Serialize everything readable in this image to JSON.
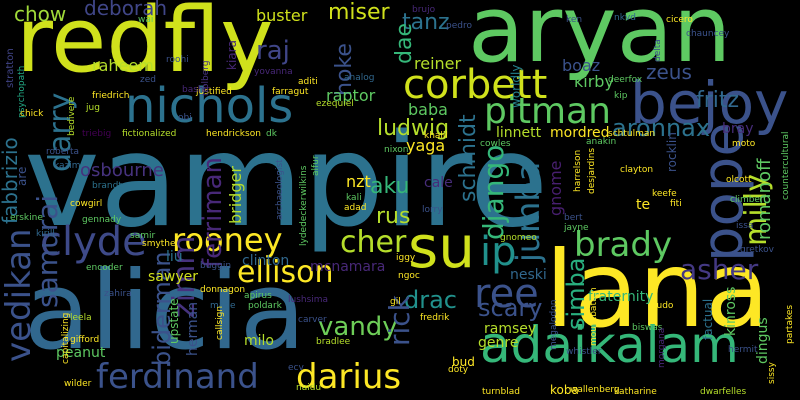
{
  "canvas": {
    "background": "#000000"
  },
  "words": [
    {
      "text": "vampire",
      "color": "#2c728e"
    },
    {
      "text": "alicia",
      "color": "#31688e"
    },
    {
      "text": "redfly",
      "color": "#d0e11c"
    },
    {
      "text": "aryan",
      "color": "#5ec962"
    },
    {
      "text": "lana",
      "color": "#fde725"
    },
    {
      "text": "adaikalam",
      "color": "#35b779"
    },
    {
      "text": "nichols",
      "color": "#2c728e"
    },
    {
      "text": "bejoy",
      "color": "#3b528b"
    },
    {
      "text": "corbett",
      "color": "#d0e11c"
    },
    {
      "text": "pitman",
      "color": "#5ec962"
    },
    {
      "text": "su",
      "color": "#d0e11c"
    },
    {
      "text": "ip",
      "color": "#21918c"
    },
    {
      "text": "pope",
      "color": "#3b528b"
    },
    {
      "text": "ellison",
      "color": "#fde725"
    },
    {
      "text": "rooney",
      "color": "#fde725"
    },
    {
      "text": "brady",
      "color": "#5ec962"
    },
    {
      "text": "ferdinand",
      "color": "#3b528b"
    },
    {
      "text": "darius",
      "color": "#fde725"
    },
    {
      "text": "clyde",
      "color": "#3e4a89"
    },
    {
      "text": "vedikan",
      "color": "#3b528b"
    },
    {
      "text": "samurai",
      "color": "#3b528b"
    },
    {
      "text": "ree",
      "color": "#3b528b"
    },
    {
      "text": "vandy",
      "color": "#6ece58"
    },
    {
      "text": "cher",
      "color": "#b5de2b"
    },
    {
      "text": "jumba",
      "color": "#2c728e"
    },
    {
      "text": "django",
      "color": "#35b779"
    },
    {
      "text": "milly",
      "color": "#b5de2b"
    },
    {
      "text": "darry",
      "color": "#2c728e"
    },
    {
      "text": "zimm",
      "color": "#46327e"
    },
    {
      "text": "asher",
      "color": "#443983"
    },
    {
      "text": "aku",
      "color": "#35b779"
    },
    {
      "text": "rus",
      "color": "#b5de2b"
    },
    {
      "text": "scary",
      "color": "#3b528b"
    },
    {
      "text": "drac",
      "color": "#21918c"
    },
    {
      "text": "ferriman",
      "color": "#482878"
    },
    {
      "text": "rick",
      "color": "#3b528b"
    },
    {
      "text": "biderman",
      "color": "#3b528b"
    },
    {
      "text": "schmidt",
      "color": "#2c728e"
    },
    {
      "text": "simba",
      "color": "#29af7f"
    },
    {
      "text": "aronnax",
      "color": "#2c728e"
    },
    {
      "text": "raj",
      "color": "#404688"
    },
    {
      "text": "miser",
      "color": "#d0e11c"
    },
    {
      "text": "tanz",
      "color": "#2c728e"
    },
    {
      "text": "chow",
      "color": "#a0da39"
    },
    {
      "text": "deborah",
      "color": "#404688"
    },
    {
      "text": "buster",
      "color": "#d0e11c"
    },
    {
      "text": "hoke",
      "color": "#3b528b"
    },
    {
      "text": "ludwig",
      "color": "#b5de2b"
    },
    {
      "text": "zeus",
      "color": "#3b528b"
    },
    {
      "text": "fritz",
      "color": "#31688e"
    },
    {
      "text": "boaz",
      "color": "#3b528b"
    },
    {
      "text": "kirby",
      "color": "#5ec962"
    },
    {
      "text": "reiner",
      "color": "#b5de2b"
    },
    {
      "text": "dae",
      "color": "#35b779"
    },
    {
      "text": "raptor",
      "color": "#5ec962"
    },
    {
      "text": "yaga",
      "color": "#fde725"
    },
    {
      "text": "baba",
      "color": "#5ec962"
    },
    {
      "text": "raheem",
      "color": "#b5de2b"
    },
    {
      "text": "osbourne",
      "color": "#46327e"
    },
    {
      "text": "fabbrizio",
      "color": "#2c728e"
    },
    {
      "text": "nzt",
      "color": "#fde725"
    },
    {
      "text": "bridger",
      "color": "#b5de2b"
    },
    {
      "text": "cale",
      "color": "#472c7a"
    },
    {
      "text": "linnett",
      "color": "#b5de2b"
    },
    {
      "text": "mordred",
      "color": "#fde725"
    },
    {
      "text": "gnome",
      "color": "#481f70"
    },
    {
      "text": "romanoff",
      "color": "#5ec962"
    },
    {
      "text": "bray",
      "color": "#472c7a"
    },
    {
      "text": "liu",
      "color": "#2c728e"
    },
    {
      "text": "sawyer",
      "color": "#d0e11c"
    },
    {
      "text": "clinton",
      "color": "#31688e"
    },
    {
      "text": "mcnamara",
      "color": "#482878"
    },
    {
      "text": "neski",
      "color": "#31688e"
    },
    {
      "text": "fraternity",
      "color": "#35b779"
    },
    {
      "text": "ramsey",
      "color": "#b5de2b"
    },
    {
      "text": "genre",
      "color": "#b5de2b"
    },
    {
      "text": "milo",
      "color": "#b5de2b"
    },
    {
      "text": "herman",
      "color": "#3b528b"
    },
    {
      "text": "peanut",
      "color": "#5ec962"
    },
    {
      "text": "dingus",
      "color": "#5ec962"
    },
    {
      "text": "kinross",
      "color": "#5ec962"
    },
    {
      "text": "factual",
      "color": "#2c728e"
    },
    {
      "text": "rocklin",
      "color": "#3b528b"
    },
    {
      "text": "te",
      "color": "#fde725"
    },
    {
      "text": "koba",
      "color": "#fde725"
    },
    {
      "text": "bud",
      "color": "#fde725"
    },
    {
      "text": "upstate",
      "color": "#5ec962"
    },
    {
      "text": "worldly",
      "color": "#26828e"
    },
    {
      "text": "are",
      "color": "#3b528b"
    },
    {
      "text": "kiara",
      "color": "#482878"
    },
    {
      "text": "stratton",
      "color": "#414487"
    },
    {
      "text": "psychopath",
      "color": "#22a884"
    },
    {
      "text": "friedrich",
      "color": "#fde725"
    },
    {
      "text": "justified",
      "color": "#fde725"
    },
    {
      "text": "farragut",
      "color": "#fde725"
    },
    {
      "text": "yovanna",
      "color": "#482878"
    },
    {
      "text": "aditi",
      "color": "#fde725"
    },
    {
      "text": "analog",
      "color": "#31688e"
    },
    {
      "text": "ezequiel",
      "color": "#b5de2b"
    },
    {
      "text": "trolberg",
      "color": "#46327e"
    },
    {
      "text": "brujo",
      "color": "#482878"
    },
    {
      "text": "pedro",
      "color": "#3b528b"
    },
    {
      "text": "wai",
      "color": "#5ec962"
    },
    {
      "text": "zed",
      "color": "#3b528b"
    },
    {
      "text": "roohi",
      "color": "#3b528b"
    },
    {
      "text": "jug",
      "color": "#b5de2b"
    },
    {
      "text": "chick",
      "color": "#fde725"
    },
    {
      "text": "bedivere",
      "color": "#b5de2b"
    },
    {
      "text": "bashir",
      "color": "#482878"
    },
    {
      "text": "obi",
      "color": "#3b528b"
    },
    {
      "text": "triebig",
      "color": "#440154"
    },
    {
      "text": "fictionalized",
      "color": "#b5de2b"
    },
    {
      "text": "hendrickson",
      "color": "#fde725"
    },
    {
      "text": "dk",
      "color": "#5ec962"
    },
    {
      "text": "roberta",
      "color": "#3b528b"
    },
    {
      "text": "kazim",
      "color": "#31688e"
    },
    {
      "text": "brandt",
      "color": "#2c728e"
    },
    {
      "text": "cowgirl",
      "color": "#fde725"
    },
    {
      "text": "gennady",
      "color": "#5ec962"
    },
    {
      "text": "erskine",
      "color": "#5ec962"
    },
    {
      "text": "kirill",
      "color": "#31688e"
    },
    {
      "text": "samir",
      "color": "#5ec962"
    },
    {
      "text": "smythe",
      "color": "#fde725"
    },
    {
      "text": "encoder",
      "color": "#5ec962"
    },
    {
      "text": "zahira",
      "color": "#3b528b"
    },
    {
      "text": "leela",
      "color": "#b5de2b"
    },
    {
      "text": "capitalizing",
      "color": "#fde725"
    },
    {
      "text": "gifford",
      "color": "#fde725"
    },
    {
      "text": "wilder",
      "color": "#fde725"
    },
    {
      "text": "buggin",
      "color": "#3b528b"
    },
    {
      "text": "donnagon",
      "color": "#fde725"
    },
    {
      "text": "mage",
      "color": "#31688e"
    },
    {
      "text": "callsign",
      "color": "#fde725"
    },
    {
      "text": "poldark",
      "color": "#5ec962"
    },
    {
      "text": "apirus",
      "color": "#5ec962"
    },
    {
      "text": "ecv",
      "color": "#3b528b"
    },
    {
      "text": "naidu",
      "color": "#b5de2b"
    },
    {
      "text": "bradlee",
      "color": "#b5de2b"
    },
    {
      "text": "carver",
      "color": "#3b528b"
    },
    {
      "text": "lushsima",
      "color": "#482878"
    },
    {
      "text": "fredrik",
      "color": "#fde725"
    },
    {
      "text": "gil",
      "color": "#fde725"
    },
    {
      "text": "ngoc",
      "color": "#fde725"
    },
    {
      "text": "iggy",
      "color": "#fde725"
    },
    {
      "text": "lorry",
      "color": "#3b528b"
    },
    {
      "text": "adad",
      "color": "#fde725"
    },
    {
      "text": "kali",
      "color": "#5ec962"
    },
    {
      "text": "archaeologist",
      "color": "#3b528b"
    },
    {
      "text": "wilkins",
      "color": "#5ec962"
    },
    {
      "text": "alfur",
      "color": "#5ec962"
    },
    {
      "text": "lydedecker",
      "color": "#5ec962"
    },
    {
      "text": "nixon",
      "color": "#5ec962"
    },
    {
      "text": "khalil",
      "color": "#fde725"
    },
    {
      "text": "anakin",
      "color": "#5ec962"
    },
    {
      "text": "cowles",
      "color": "#5ec962"
    },
    {
      "text": "harrelson",
      "color": "#fde725"
    },
    {
      "text": "desjardins",
      "color": "#fde725"
    },
    {
      "text": "schtulman",
      "color": "#fde725"
    },
    {
      "text": "clayton",
      "color": "#fde725"
    },
    {
      "text": "moto",
      "color": "#fde725"
    },
    {
      "text": "countercultural",
      "color": "#5ec962"
    },
    {
      "text": "olcott",
      "color": "#fde725"
    },
    {
      "text": "keefe",
      "color": "#fde725"
    },
    {
      "text": "fiti",
      "color": "#fde725"
    },
    {
      "text": "climber",
      "color": "#5ec962"
    },
    {
      "text": "bert",
      "color": "#3b528b"
    },
    {
      "text": "jayne",
      "color": "#5ec962"
    },
    {
      "text": "gnomeo",
      "color": "#b5de2b"
    },
    {
      "text": "issa",
      "color": "#3b528b"
    },
    {
      "text": "gretkov",
      "color": "#3b528b"
    },
    {
      "text": "ludo",
      "color": "#fde725"
    },
    {
      "text": "mountbatten",
      "color": "#fde725"
    },
    {
      "text": "biswas",
      "color": "#5ec962"
    },
    {
      "text": "partakes",
      "color": "#fde725"
    },
    {
      "text": "hermit",
      "color": "#3b528b"
    },
    {
      "text": "whistler",
      "color": "#3b528b"
    },
    {
      "text": "megalodon",
      "color": "#3b528b"
    },
    {
      "text": "morgana",
      "color": "#482878"
    },
    {
      "text": "wallenberg",
      "color": "#fde725"
    },
    {
      "text": "katharine",
      "color": "#fde725"
    },
    {
      "text": "dwarfelles",
      "color": "#b5de2b"
    },
    {
      "text": "sissy",
      "color": "#fde725"
    },
    {
      "text": "turnblad",
      "color": "#fde725"
    },
    {
      "text": "doty",
      "color": "#fde725"
    },
    {
      "text": "ken",
      "color": "#3b528b"
    },
    {
      "text": "nkvd",
      "color": "#31688e"
    },
    {
      "text": "cicero",
      "color": "#fde725"
    },
    {
      "text": "chauncey",
      "color": "#3b528b"
    },
    {
      "text": "deerfox",
      "color": "#5ec962"
    },
    {
      "text": "delta",
      "color": "#3b528b"
    },
    {
      "text": "kip",
      "color": "#5ec962"
    }
  ]
}
